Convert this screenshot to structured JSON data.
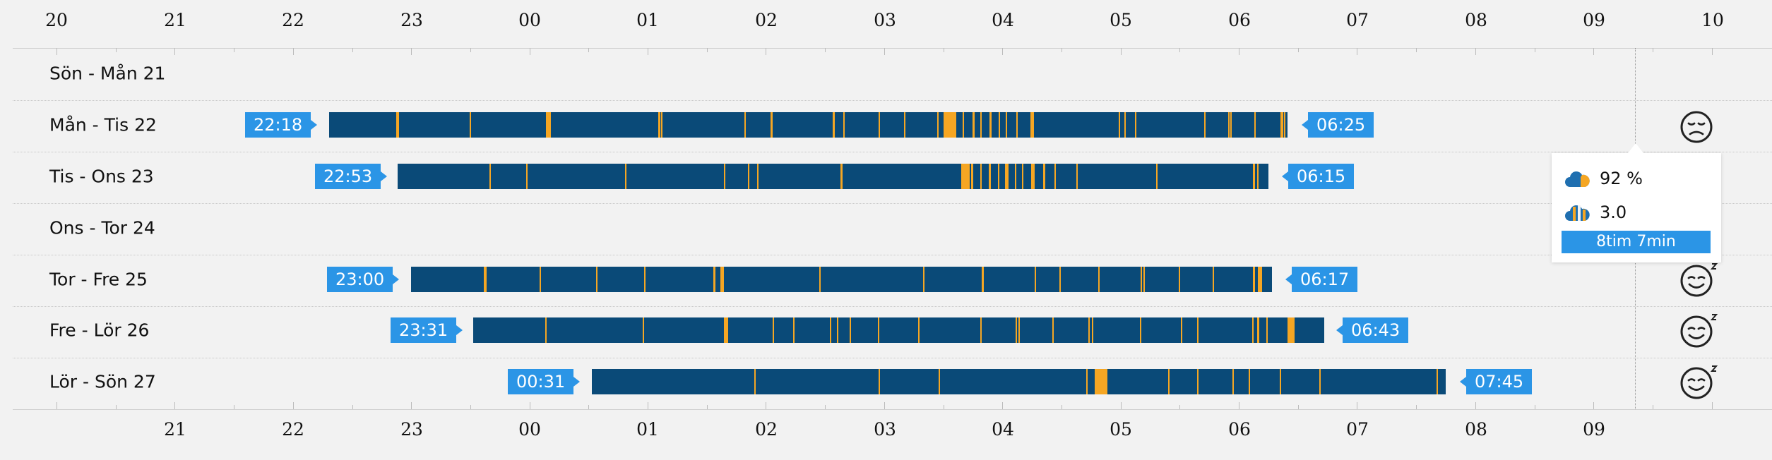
{
  "axis": {
    "top_labels": [
      "20",
      "21",
      "22",
      "23",
      "00",
      "01",
      "02",
      "03",
      "04",
      "05",
      "06",
      "07",
      "08",
      "09",
      "10"
    ],
    "bottom_labels": [
      "21",
      "22",
      "23",
      "00",
      "01",
      "02",
      "03",
      "04",
      "05",
      "06",
      "07",
      "08",
      "09"
    ]
  },
  "rows": [
    {
      "label": "Sön - Mån 21",
      "start": "",
      "end": "",
      "mood": ""
    },
    {
      "label": "Mån - Tis 22",
      "start": "22:18",
      "end": "06:25",
      "mood": "sad-face-icon"
    },
    {
      "label": "Tis - Ons 23",
      "start": "22:53",
      "end": "06:15",
      "mood": ""
    },
    {
      "label": "Ons - Tor 24",
      "start": "",
      "end": "",
      "mood": ""
    },
    {
      "label": "Tor - Fre 25",
      "start": "23:00",
      "end": "06:17",
      "mood": "sleepy-smile-icon"
    },
    {
      "label": "Fre - Lör 26",
      "start": "23:31",
      "end": "06:43",
      "mood": "sleepy-smile-icon"
    },
    {
      "label": "Lör - Sön 27",
      "start": "00:31",
      "end": "07:45",
      "mood": "sleepy-smile-icon"
    }
  ],
  "tooltip": {
    "quality_value": "92 %",
    "quality_icon": "cloud-half-icon",
    "score_value": "3.0",
    "score_icon": "cloud-bars-icon",
    "duration": "8tim 7min"
  },
  "colors": {
    "background": "#f2f2f2",
    "sleep_bar": "#0a4a78",
    "awake_mark": "#f5a623",
    "accent": "#2b95e6"
  }
}
